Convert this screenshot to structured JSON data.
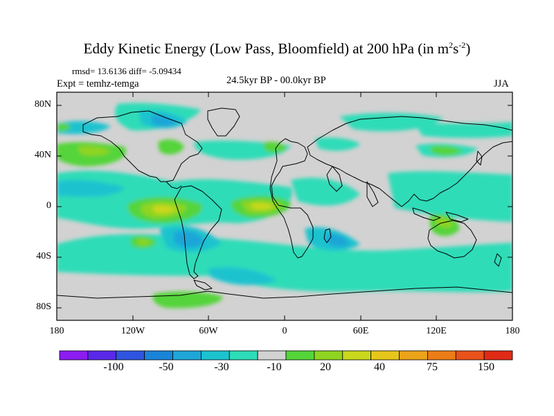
{
  "figure": {
    "title_main": "Eddy Kinetic Energy (Low Pass, Bloomfield) at 200 hPa (in m",
    "title_sup1": "2",
    "title_mid": "s",
    "title_sup2": "-2",
    "title_end": ")",
    "stats": "rmsd= 13.6136 diff= -5.09434",
    "experiment": "Expt = temhz-temga",
    "period": "24.5kyr BP - 00.0kyr BP",
    "season": "JJA"
  },
  "axes": {
    "lat_ticks": [
      "80N",
      "40N",
      "0",
      "40S",
      "80S"
    ],
    "lon_ticks": [
      "180",
      "120W",
      "60W",
      "0",
      "60E",
      "120E",
      "180"
    ]
  },
  "colorbar": {
    "colors": [
      "#8c1cf0",
      "#5a28e8",
      "#2f55e0",
      "#1a84d8",
      "#1fa6d8",
      "#1cc3cf",
      "#2ddcb8",
      "#d2d2d2",
      "#55d43a",
      "#8fd420",
      "#c9d81c",
      "#e6c61a",
      "#eba31a",
      "#ec7d16",
      "#e9521a",
      "#e02a16"
    ],
    "labels": [
      "-100",
      "-50",
      "-30",
      "-10",
      "20",
      "40",
      "75",
      "150"
    ]
  },
  "map": {
    "land_color": "#d2d2d2",
    "region_colors": {
      "teal": "#2ddcb8",
      "cyan": "#1cc3cf",
      "blue": "#1fa6d8",
      "green": "#55d43a",
      "yellowgreen": "#8fd420",
      "yellow": "#c9d81c"
    }
  }
}
